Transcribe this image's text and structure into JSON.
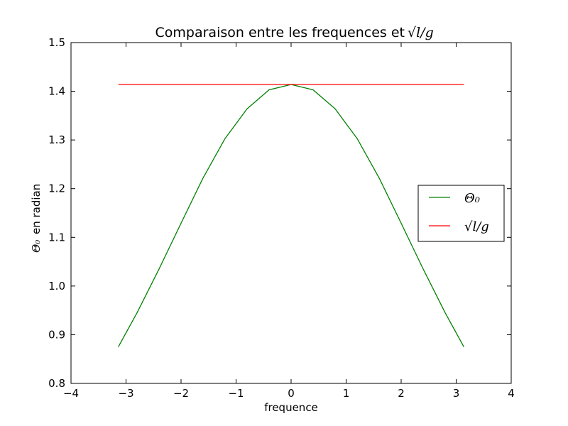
{
  "chart_data": {
    "type": "line",
    "title": "Comparaison entre les frequences et",
    "title_math": "√l/g",
    "xlabel": "frequence",
    "ylabel_math": "Θ₀",
    "ylabel_text": "en radian",
    "xlim": [
      -4,
      4
    ],
    "ylim": [
      0.8,
      1.5
    ],
    "xticks": [
      -4,
      -3,
      -2,
      -1,
      0,
      1,
      2,
      3,
      4
    ],
    "xtick_labels": [
      "−4",
      "−3",
      "−2",
      "−1",
      "0",
      "1",
      "2",
      "3",
      "4"
    ],
    "yticks": [
      0.8,
      0.9,
      1.0,
      1.1,
      1.2,
      1.3,
      1.4,
      1.5
    ],
    "ytick_labels": [
      "0.8",
      "0.9",
      "1.0",
      "1.1",
      "1.2",
      "1.3",
      "1.4",
      "1.5"
    ],
    "grid": false,
    "legend_position": "center-right",
    "series": [
      {
        "name": "Θ₀",
        "color": "#008000",
        "x": [
          -3.14,
          -2.8,
          -2.4,
          -2.0,
          -1.6,
          -1.2,
          -0.8,
          -0.4,
          0.0,
          0.4,
          0.8,
          1.2,
          1.6,
          2.0,
          2.4,
          2.8,
          3.14
        ],
        "y": [
          0.875,
          0.945,
          1.035,
          1.129,
          1.222,
          1.303,
          1.364,
          1.403,
          1.414,
          1.403,
          1.364,
          1.303,
          1.222,
          1.129,
          1.035,
          0.945,
          0.875
        ]
      },
      {
        "name": "√l/g",
        "color": "#ff0000",
        "x": [
          -3.14,
          3.14
        ],
        "y": [
          1.414,
          1.414
        ]
      }
    ]
  }
}
